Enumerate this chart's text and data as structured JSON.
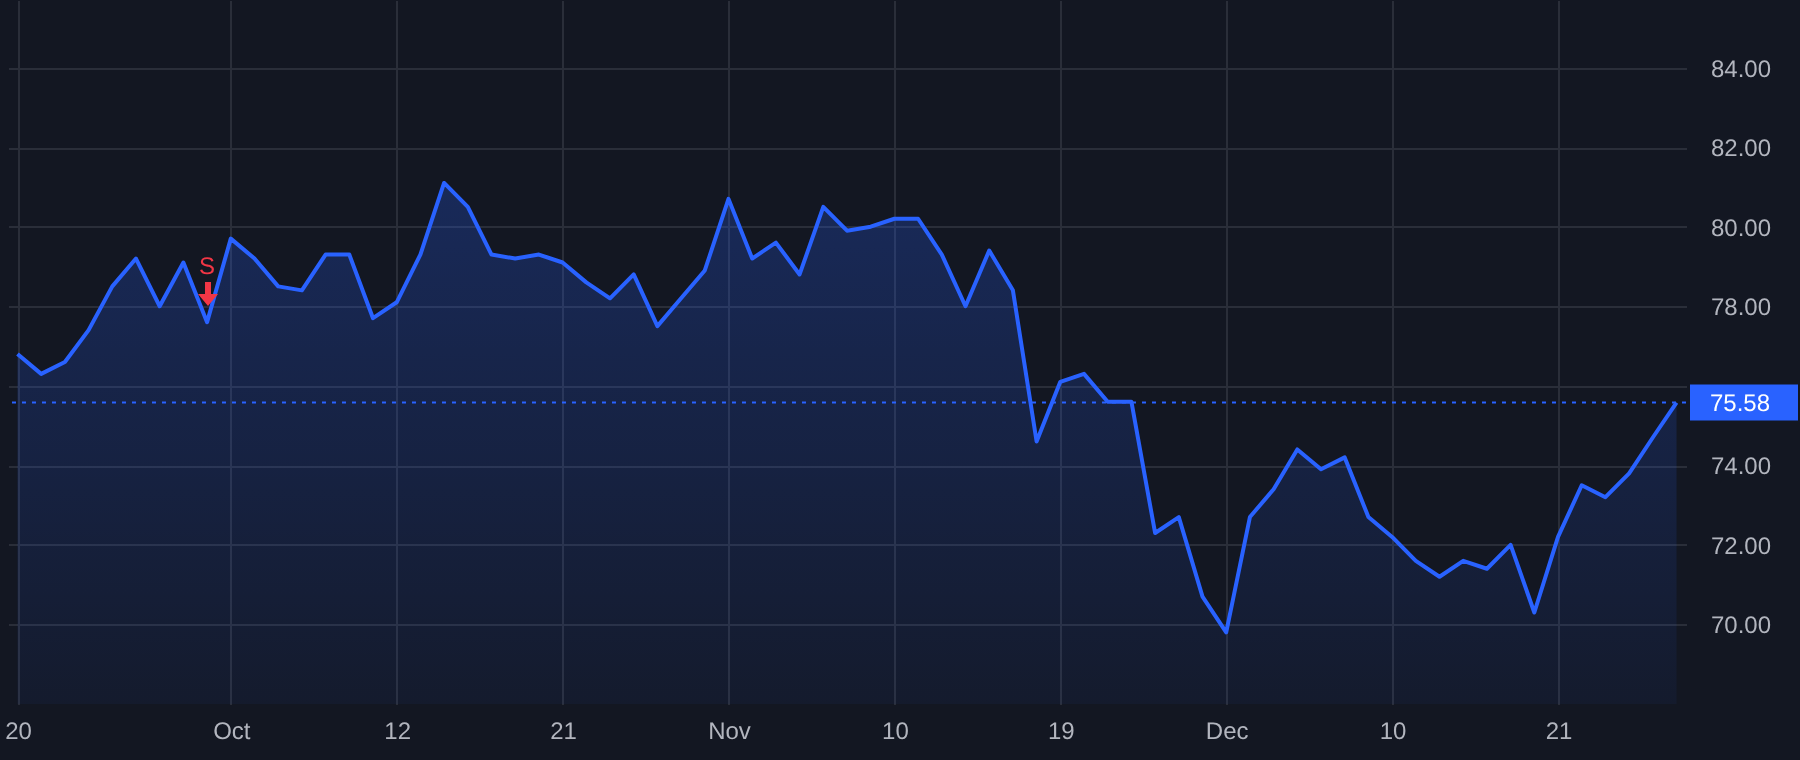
{
  "chart_data": {
    "type": "area",
    "color": "#2962ff",
    "categories": [
      "20",
      null,
      null,
      null,
      null,
      null,
      null,
      null,
      null,
      "Oct",
      null,
      null,
      null,
      null,
      null,
      null,
      "12",
      null,
      null,
      null,
      null,
      null,
      null,
      "21",
      null,
      null,
      null,
      null,
      null,
      null,
      "Nov",
      null,
      null,
      null,
      null,
      null,
      null,
      "10",
      null,
      null,
      null,
      null,
      null,
      null,
      "19",
      null,
      null,
      null,
      null,
      null,
      null,
      "Dec",
      null,
      null,
      null,
      null,
      null,
      null,
      "10",
      null,
      null,
      null,
      null,
      null,
      null,
      "21",
      null,
      null,
      null,
      null,
      null
    ],
    "values": [
      76.8,
      76.3,
      76.6,
      77.4,
      78.5,
      79.2,
      78.0,
      79.1,
      77.6,
      79.7,
      79.2,
      78.5,
      78.4,
      79.3,
      79.3,
      77.7,
      78.1,
      79.3,
      81.1,
      80.5,
      79.3,
      79.2,
      79.3,
      79.1,
      78.6,
      78.2,
      78.8,
      77.5,
      78.2,
      78.9,
      80.7,
      79.2,
      79.6,
      78.8,
      80.5,
      79.9,
      80.0,
      80.2,
      80.2,
      79.3,
      78.0,
      79.4,
      78.4,
      74.6,
      76.1,
      76.3,
      75.6,
      75.6,
      72.3,
      72.7,
      70.7,
      69.8,
      72.7,
      73.4,
      74.4,
      73.9,
      74.2,
      72.7,
      72.2,
      71.6,
      71.2,
      71.6,
      71.4,
      72.0,
      70.3,
      72.2,
      73.5,
      73.2,
      73.8,
      74.7,
      75.58
    ],
    "ylim": [
      68,
      85.7
    ],
    "yticks": [
      {
        "value": 70,
        "label": "70.00"
      },
      {
        "value": 72,
        "label": "72.00"
      },
      {
        "value": 74,
        "label": "74.00"
      },
      {
        "value": 76,
        "label": null
      },
      {
        "value": 78,
        "label": "78.00"
      },
      {
        "value": 80,
        "label": "80.00"
      },
      {
        "value": 82,
        "label": "82.00"
      },
      {
        "value": 84,
        "label": "84.00"
      }
    ],
    "grid": true,
    "ref_lines": [
      {
        "axis": "y",
        "value": 75.58,
        "label": "75.58",
        "color": "#2962ff",
        "line_style": "dotted"
      }
    ],
    "annotations": [
      {
        "text": "S",
        "y": 77.6
      }
    ]
  }
}
